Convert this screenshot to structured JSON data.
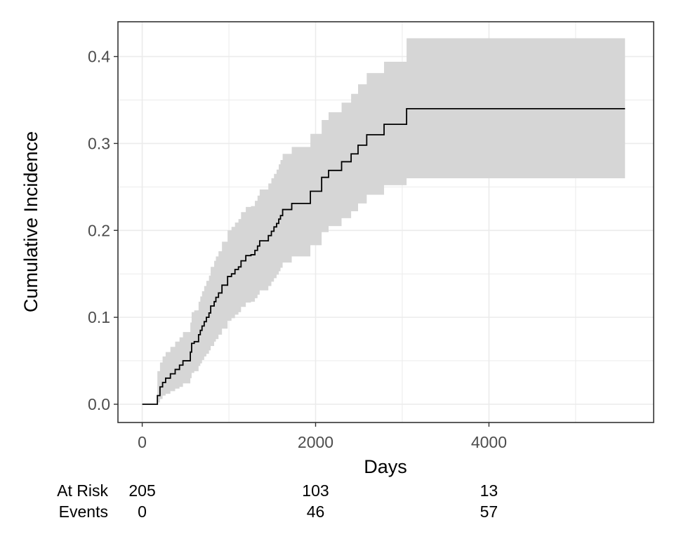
{
  "chart_data": {
    "type": "line",
    "style": "step",
    "xlabel": "Days",
    "ylabel": "Cumulative Incidence",
    "xlim": [
      -280,
      5900
    ],
    "ylim": [
      -0.021,
      0.44
    ],
    "x_ticks": [
      0,
      2000,
      4000
    ],
    "y_ticks": [
      0.0,
      0.1,
      0.2,
      0.3,
      0.4
    ],
    "x_tick_labels": [
      "0",
      "2000",
      "4000"
    ],
    "y_tick_labels": [
      "0.0",
      "0.1",
      "0.2",
      "0.3",
      "0.4"
    ],
    "grid": true,
    "colors": {
      "line": "#000000",
      "band": "#d6d6d6",
      "grid": "#ebebeb",
      "border": "#333333",
      "tick_text": "#4d4d4d"
    },
    "series": [
      {
        "x": [
          0,
          175,
          205,
          235,
          270,
          300,
          325,
          380,
          430,
          470,
          510,
          555,
          570,
          600,
          650,
          670,
          690,
          715,
          740,
          770,
          790,
          815,
          830,
          850,
          880,
          920,
          985,
          1030,
          1070,
          1110,
          1140,
          1195,
          1255,
          1300,
          1330,
          1355,
          1455,
          1490,
          1520,
          1550,
          1575,
          1595,
          1620,
          1700,
          1725,
          1940,
          2070,
          2100,
          2150,
          2260,
          2300,
          2410,
          2490,
          2590,
          2790,
          3050,
          3340,
          5570
        ],
        "y": [
          0.0,
          0.01,
          0.02,
          0.025,
          0.03,
          0.03,
          0.035,
          0.04,
          0.045,
          0.05,
          0.05,
          0.06,
          0.07,
          0.072,
          0.08,
          0.085,
          0.09,
          0.095,
          0.1,
          0.105,
          0.113,
          0.113,
          0.118,
          0.123,
          0.128,
          0.137,
          0.147,
          0.15,
          0.155,
          0.158,
          0.165,
          0.171,
          0.172,
          0.177,
          0.182,
          0.188,
          0.194,
          0.199,
          0.204,
          0.208,
          0.213,
          0.217,
          0.224,
          0.224,
          0.231,
          0.245,
          0.261,
          0.261,
          0.269,
          0.269,
          0.279,
          0.288,
          0.298,
          0.31,
          0.322,
          0.34,
          0.34,
          0.34
        ],
        "lower": [
          0.0,
          0.002,
          0.006,
          0.01,
          0.012,
          0.012,
          0.015,
          0.018,
          0.02,
          0.024,
          0.024,
          0.03,
          0.036,
          0.038,
          0.044,
          0.047,
          0.051,
          0.055,
          0.058,
          0.062,
          0.067,
          0.067,
          0.072,
          0.075,
          0.08,
          0.087,
          0.096,
          0.099,
          0.103,
          0.106,
          0.112,
          0.117,
          0.118,
          0.122,
          0.126,
          0.131,
          0.136,
          0.141,
          0.145,
          0.149,
          0.153,
          0.157,
          0.163,
          0.163,
          0.17,
          0.183,
          0.198,
          0.198,
          0.205,
          0.205,
          0.214,
          0.222,
          0.231,
          0.241,
          0.252,
          0.26,
          0.26,
          0.26
        ],
        "upper": [
          0.0,
          0.038,
          0.048,
          0.055,
          0.06,
          0.06,
          0.066,
          0.072,
          0.077,
          0.083,
          0.083,
          0.094,
          0.106,
          0.108,
          0.118,
          0.124,
          0.13,
          0.136,
          0.142,
          0.148,
          0.158,
          0.158,
          0.165,
          0.17,
          0.176,
          0.187,
          0.2,
          0.204,
          0.209,
          0.213,
          0.221,
          0.227,
          0.228,
          0.234,
          0.24,
          0.247,
          0.254,
          0.26,
          0.265,
          0.27,
          0.276,
          0.281,
          0.288,
          0.288,
          0.296,
          0.311,
          0.327,
          0.327,
          0.336,
          0.336,
          0.347,
          0.357,
          0.368,
          0.381,
          0.394,
          0.421,
          0.421,
          0.421
        ]
      }
    ],
    "risk_table": {
      "rows": [
        {
          "label": "At Risk",
          "values": [
            "205",
            "103",
            "13"
          ]
        },
        {
          "label": "Events",
          "values": [
            "0",
            "46",
            "57"
          ]
        }
      ]
    }
  }
}
